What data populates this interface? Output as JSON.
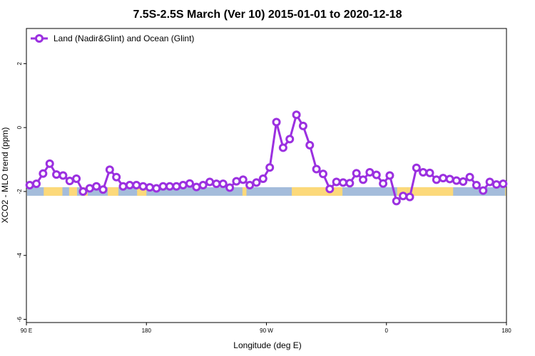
{
  "chart_data": {
    "type": "line",
    "title": "7.5S-2.5S March (Ver 10)   2015-01-01 to 2020-12-18",
    "xlabel": "Longitude (deg E)",
    "ylabel": "XCO2 - MLO trend (ppm)",
    "xlim": [
      90,
      450
    ],
    "ylim": [
      -6.1,
      3.1
    ],
    "x_ticks": [
      {
        "value": 90,
        "label": "90 E"
      },
      {
        "value": 180,
        "label": "180"
      },
      {
        "value": 270,
        "label": "90 W"
      },
      {
        "value": 360,
        "label": "0"
      },
      {
        "value": 450,
        "label": "180"
      }
    ],
    "y_ticks": [
      {
        "value": 2,
        "label": "2"
      },
      {
        "value": 0,
        "label": "0"
      },
      {
        "value": -2,
        "label": "-2"
      },
      {
        "value": -4,
        "label": "-4"
      },
      {
        "value": -6,
        "label": "-6"
      }
    ],
    "grid": false,
    "legend_position": "top-left",
    "series": [
      {
        "name": "Land (Nadir&Glint) and Ocean (Glint)",
        "color": "#9b30e0",
        "marker": "open-circle",
        "x": [
          92.5,
          97.5,
          102.5,
          107.5,
          112.5,
          117.5,
          122.5,
          127.5,
          132.5,
          137.5,
          142.5,
          147.5,
          152.5,
          157.5,
          162.5,
          167.5,
          172.5,
          177.5,
          182.5,
          187.5,
          192.5,
          197.5,
          202.5,
          207.5,
          212.5,
          217.5,
          222.5,
          227.5,
          232.5,
          237.5,
          242.5,
          247.5,
          252.5,
          257.5,
          262.5,
          267.5,
          272.5,
          277.5,
          282.5,
          287.5,
          292.5,
          297.5,
          302.5,
          307.5,
          312.5,
          317.5,
          322.5,
          327.5,
          332.5,
          337.5,
          342.5,
          347.5,
          352.5,
          357.5,
          362.5,
          367.5,
          372.5,
          377.5,
          382.5,
          387.5,
          392.5,
          397.5,
          402.5,
          407.5,
          412.5,
          417.5,
          422.5,
          427.5,
          432.5,
          437.5,
          442.5,
          447.5
        ],
        "y": [
          -1.8,
          -1.76,
          -1.44,
          -1.13,
          -1.47,
          -1.5,
          -1.67,
          -1.6,
          -2.0,
          -1.9,
          -1.84,
          -1.94,
          -1.32,
          -1.55,
          -1.84,
          -1.8,
          -1.8,
          -1.84,
          -1.87,
          -1.9,
          -1.84,
          -1.84,
          -1.84,
          -1.8,
          -1.75,
          -1.86,
          -1.8,
          -1.7,
          -1.76,
          -1.76,
          -1.88,
          -1.68,
          -1.63,
          -1.8,
          -1.72,
          -1.6,
          -1.25,
          0.17,
          -0.63,
          -0.36,
          0.4,
          0.05,
          -0.55,
          -1.3,
          -1.45,
          -1.92,
          -1.7,
          -1.72,
          -1.74,
          -1.43,
          -1.63,
          -1.4,
          -1.48,
          -1.75,
          -1.5,
          -2.3,
          -2.14,
          -2.17,
          -1.26,
          -1.4,
          -1.42,
          -1.63,
          -1.58,
          -1.61,
          -1.66,
          -1.69,
          -1.55,
          -1.8,
          -1.97,
          -1.7,
          -1.78,
          -1.76
        ]
      }
    ],
    "surface_strip": {
      "y_level": -2.0,
      "ocean_color": "#a4bcdb",
      "land_color": "#fcd97a",
      "land_segments": [
        [
          103,
          117
        ],
        [
          122,
          128
        ],
        [
          133,
          136
        ],
        [
          151,
          159
        ],
        [
          173,
          180
        ],
        [
          252,
          255
        ],
        [
          289,
          327
        ],
        [
          368,
          376
        ],
        [
          376,
          410
        ],
        [
          449,
          450
        ]
      ]
    }
  }
}
